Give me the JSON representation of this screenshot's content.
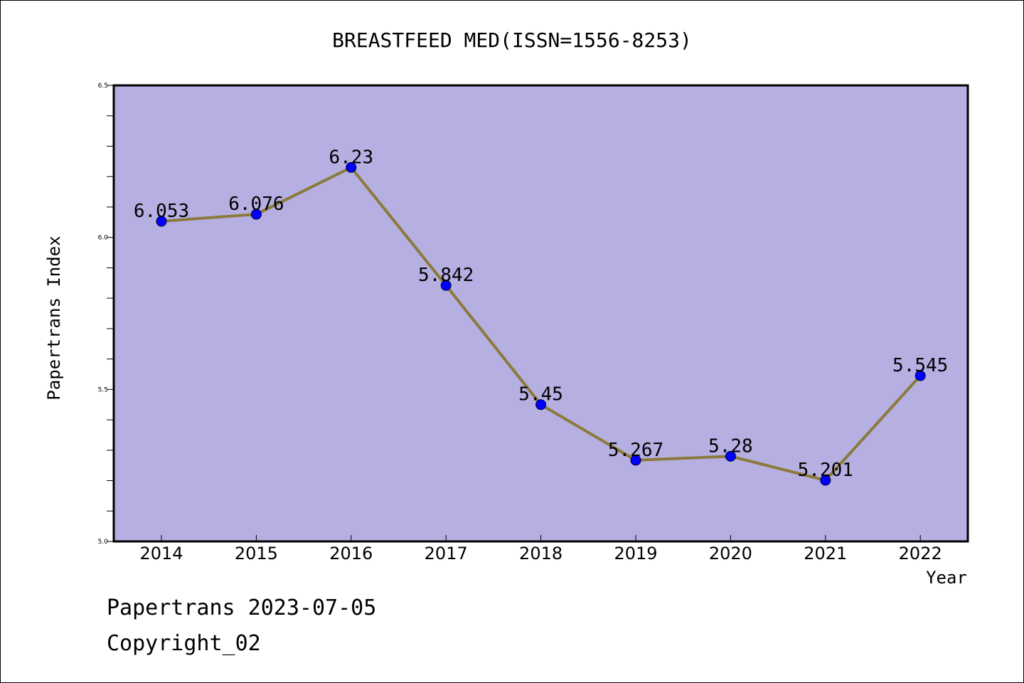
{
  "chart_data": {
    "type": "line",
    "title": "BREASTFEED MED(ISSN=1556-8253)",
    "xlabel": "Year",
    "ylabel": "Papertrans Index",
    "categories": [
      "2014",
      "2015",
      "2016",
      "2017",
      "2018",
      "2019",
      "2020",
      "2021",
      "2022"
    ],
    "values": [
      6.053,
      6.076,
      6.23,
      5.842,
      5.45,
      5.267,
      5.28,
      5.201,
      5.545
    ],
    "data_labels": [
      "6.053",
      "6.076",
      "6.23",
      "5.842",
      "5.45",
      "5.267",
      "5.28",
      "5.201",
      "5.545"
    ],
    "ylim": [
      5.0,
      6.5
    ],
    "y_ticks": [
      "5.0",
      "5.5",
      "6.0",
      "6.5"
    ],
    "grid": false,
    "colors": {
      "plot_background": "#b5afe2",
      "line": "#8b7a3a",
      "marker": "#0000ff"
    }
  },
  "footer": {
    "line1": "Papertrans 2023-07-05",
    "line2": "Copyright_02"
  }
}
